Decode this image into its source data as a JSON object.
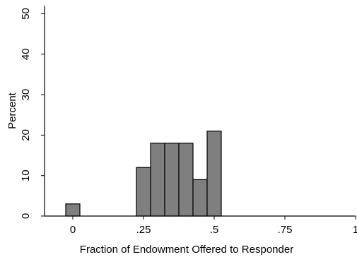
{
  "chart_data": {
    "type": "bar",
    "subtype": "histogram",
    "xlabel": "Fraction of Endowment Offered to Responder",
    "ylabel": "Percent",
    "xlim": [
      -0.1,
      1.0
    ],
    "ylim": [
      0,
      52
    ],
    "x_ticks": [
      0,
      0.25,
      0.5,
      0.75,
      1
    ],
    "x_tick_labels": [
      "0",
      ".25",
      ".5",
      ".75",
      "1"
    ],
    "y_ticks": [
      0,
      10,
      20,
      30,
      40,
      50
    ],
    "y_tick_labels": [
      "0",
      "10",
      "20",
      "30",
      "40",
      "50"
    ],
    "grid": false,
    "bar_color": "#7f7f7f",
    "bins": [
      {
        "x0": -0.025,
        "x1": 0.025,
        "value": 3
      },
      {
        "x0": 0.225,
        "x1": 0.275,
        "value": 12
      },
      {
        "x0": 0.275,
        "x1": 0.325,
        "value": 18
      },
      {
        "x0": 0.325,
        "x1": 0.375,
        "value": 18
      },
      {
        "x0": 0.375,
        "x1": 0.425,
        "value": 18
      },
      {
        "x0": 0.425,
        "x1": 0.475,
        "value": 9
      },
      {
        "x0": 0.475,
        "x1": 0.525,
        "value": 21
      }
    ]
  }
}
